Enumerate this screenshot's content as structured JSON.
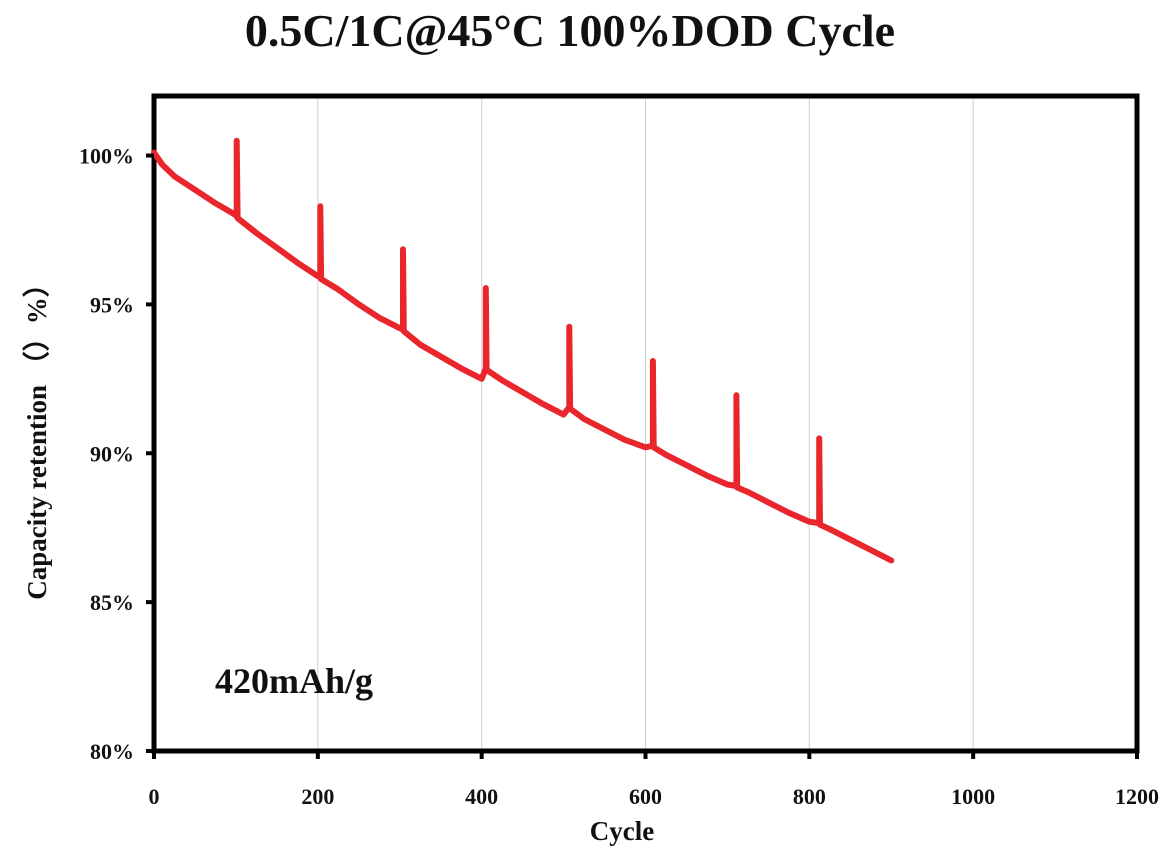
{
  "chart_data": {
    "type": "line",
    "title": "0.5C/1C@45°C 100%DOD Cycle",
    "xlabel": "Cycle",
    "ylabel": "Capacity retention （）%）",
    "xlim": [
      0,
      1200
    ],
    "ylim": [
      80,
      102
    ],
    "x_ticks": [
      0,
      200,
      400,
      600,
      800,
      1000,
      1200
    ],
    "x_tick_labels": [
      "0",
      "200",
      "400",
      "600",
      "800",
      "1000",
      "1200"
    ],
    "y_ticks": [
      80,
      85,
      90,
      95,
      100
    ],
    "y_tick_labels": [
      "80%",
      "85%",
      "90%",
      "95%",
      "100%"
    ],
    "grid": "vertical",
    "legend": "none",
    "series_color": "#e8262b",
    "annotation": "420mAh/g",
    "series": [
      {
        "x": [
          0,
          10,
          25,
          50,
          75,
          100,
          101,
          101,
          102,
          125,
          150,
          175,
          200,
          203,
          203,
          204,
          225,
          250,
          275,
          300,
          304,
          304,
          305,
          325,
          350,
          375,
          400,
          405,
          405,
          406,
          425,
          450,
          475,
          500,
          507,
          507,
          508,
          525,
          550,
          575,
          600,
          609,
          609,
          610,
          625,
          650,
          675,
          700,
          711,
          711,
          712,
          725,
          750,
          775,
          800,
          812,
          812,
          813,
          825,
          850,
          875,
          900
        ],
        "y": [
          100.1,
          99.7,
          99.3,
          98.85,
          98.4,
          98.0,
          97.95,
          100.5,
          97.9,
          97.4,
          96.9,
          96.4,
          95.95,
          95.9,
          98.3,
          95.85,
          95.5,
          95.0,
          94.55,
          94.2,
          94.15,
          96.85,
          94.1,
          93.65,
          93.25,
          92.85,
          92.5,
          92.85,
          95.55,
          92.8,
          92.45,
          92.05,
          91.65,
          91.3,
          91.55,
          94.25,
          91.5,
          91.15,
          90.8,
          90.45,
          90.2,
          90.25,
          93.1,
          90.2,
          89.95,
          89.6,
          89.25,
          88.95,
          88.9,
          91.95,
          88.85,
          88.7,
          88.35,
          88.0,
          87.7,
          87.65,
          90.5,
          87.6,
          87.45,
          87.1,
          86.75,
          86.4
        ]
      }
    ]
  }
}
